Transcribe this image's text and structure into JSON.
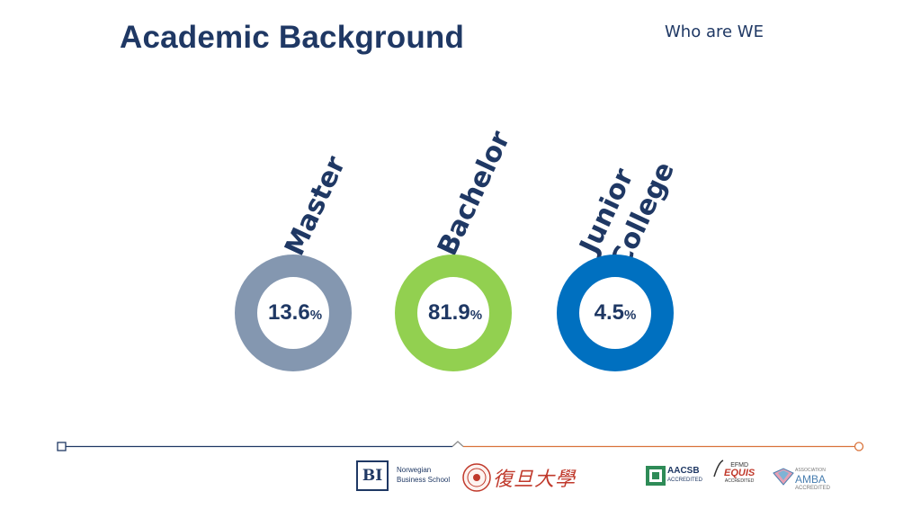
{
  "header": {
    "title": "Academic Background",
    "subtitle": "Who are WE"
  },
  "items": [
    {
      "label_lines": [
        "Master"
      ],
      "value": "13.6",
      "unit": "%",
      "color": "#8497b0"
    },
    {
      "label_lines": [
        "Bachelor"
      ],
      "value": "81.9",
      "unit": "%",
      "color": "#92d050"
    },
    {
      "label_lines": [
        "Junior",
        "College"
      ],
      "value": "4.5",
      "unit": "%",
      "color": "#0070c0"
    }
  ],
  "chart_data": {
    "type": "pie",
    "categories": [
      "Master",
      "Bachelor",
      "Junior College"
    ],
    "values": [
      13.6,
      81.9,
      4.5
    ],
    "title": "Academic Background",
    "unit": "%"
  },
  "timeline": {
    "left_color": "#1f3864",
    "right_color": "#d9733b"
  },
  "footer": {
    "bi_mark": "BI",
    "bi_name_line1": "Norwegian",
    "bi_name_line2": "Business School",
    "fudan_name": "復旦大學",
    "aacsb_name": "AACSB",
    "aacsb_sub": "ACCREDITED",
    "efmd_name": "EFMD",
    "equis_name": "EQUIS",
    "equis_sub": "ACCREDITED",
    "amba_pre": "ASSOCIATION",
    "amba_name": "AMBA",
    "amba_sub": "ACCREDITED"
  },
  "icons": {
    "fudan_seal": "fudan-seal-icon",
    "aacsb": "aacsb-logo-icon",
    "equis": "equis-logo-icon",
    "amba": "amba-logo-icon"
  }
}
